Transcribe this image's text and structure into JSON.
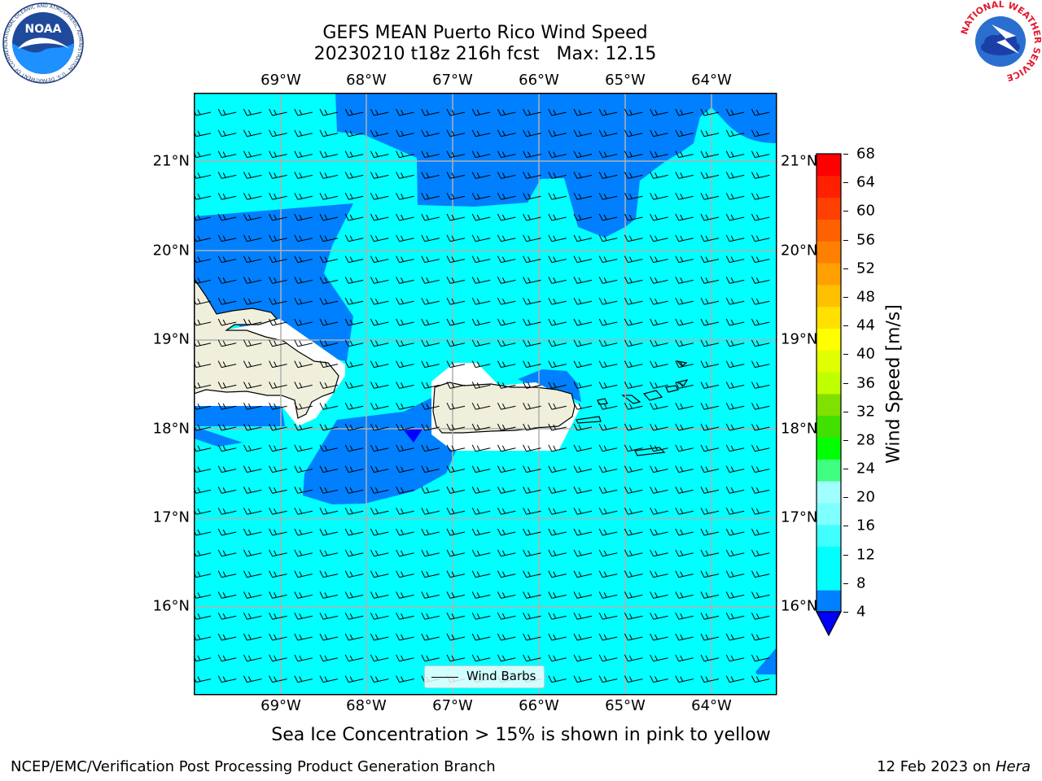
{
  "title": {
    "line1": "GEFS MEAN Puerto Rico Wind Speed",
    "line2": "20230210 t18z 216h fcst   Max: 12.15"
  },
  "map": {
    "longitude_labels": [
      "69°W",
      "68°W",
      "67°W",
      "66°W",
      "65°W",
      "64°W"
    ],
    "latitude_labels": [
      "21°N",
      "20°N",
      "19°N",
      "18°N",
      "17°N",
      "16°N"
    ],
    "fill_colors": {
      "speed_4_8": "#0080ff",
      "speed_8_12": "#00ffff",
      "speed_below_4": "#0000ff",
      "land": "#efefdc",
      "masked": "#ffffff",
      "grid": "#b0b0b0"
    },
    "legend_label": "Wind Barbs"
  },
  "colorbar": {
    "title": "Wind Speed [m/s]",
    "tick_labels": [
      "4",
      "8",
      "12",
      "16",
      "20",
      "24",
      "28",
      "32",
      "36",
      "40",
      "44",
      "48",
      "52",
      "56",
      "60",
      "64",
      "68"
    ],
    "colors": [
      "#0080ff",
      "#00ffff",
      "#00ffff",
      "#40ffff",
      "#80ffff",
      "#a0ffff",
      "#40ff80",
      "#00ff00",
      "#40e000",
      "#80e000",
      "#c0ff00",
      "#e0ff00",
      "#ffff00",
      "#ffe000",
      "#ffc000",
      "#ffa000",
      "#ff8000",
      "#ff6000",
      "#ff4000",
      "#ff2000",
      "#ff0000"
    ],
    "extend_min_color": "#0000ff"
  },
  "sea_ice_note": "Sea Ice Concentration > 15% is shown in pink to yellow",
  "footer": {
    "left": "NCEP/EMC/Verification Post Processing Product Generation Branch",
    "right_prefix": "12 Feb 2023 on ",
    "right_host": "Hera"
  },
  "logos": {
    "noaa_text": "NOAA",
    "noaa_ring_text": "NATIONAL OCEANIC AND ATMOSPHERIC ADMINISTRATION · U.S. DEPARTMENT OF COMMERCE",
    "nws_ring_text": "NATIONAL WEATHER SERVICE"
  }
}
